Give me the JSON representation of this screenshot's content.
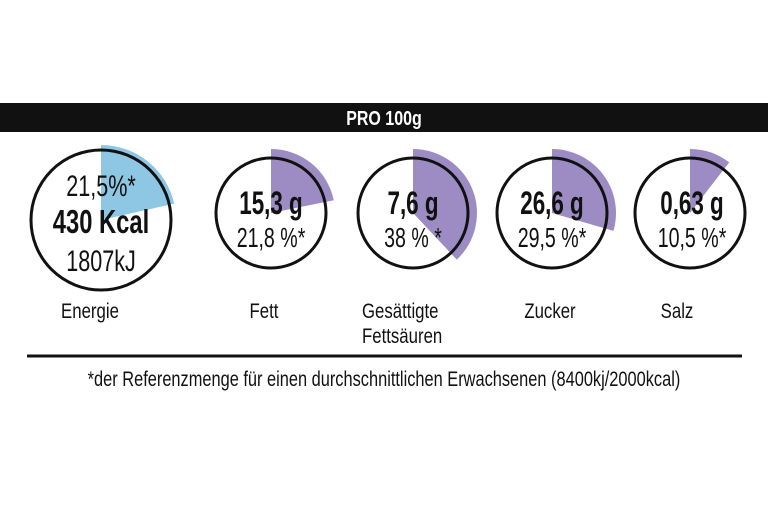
{
  "header": {
    "title": "PRO 100g"
  },
  "colors": {
    "energy": "#8ec7e3",
    "nutrient": "#9d8cc4",
    "band": "#111111"
  },
  "items": [
    {
      "name": "Energie",
      "percent_text": "21,5%*",
      "main": "430 Kcal",
      "sub": "1807kJ",
      "percent": 21.5
    },
    {
      "name": "Fett",
      "main": "15,3 g",
      "percent_text": "21,8 %*",
      "percent": 21.8
    },
    {
      "name_line1": "Gesättigte",
      "name_line2": "Fettsäuren",
      "main": "7,6 g",
      "percent_text": "38 % *",
      "percent": 38
    },
    {
      "name": "Zucker",
      "main": "26,6 g",
      "percent_text": "29,5 %*",
      "percent": 29.5
    },
    {
      "name": "Salz",
      "main": "0,63 g",
      "percent_text": "10,5 %*",
      "percent": 10.5
    }
  ],
  "footnote": "*der Referenzmenge für einen durchschnittlichen Erwachsenen (8400kj/2000kcal)"
}
